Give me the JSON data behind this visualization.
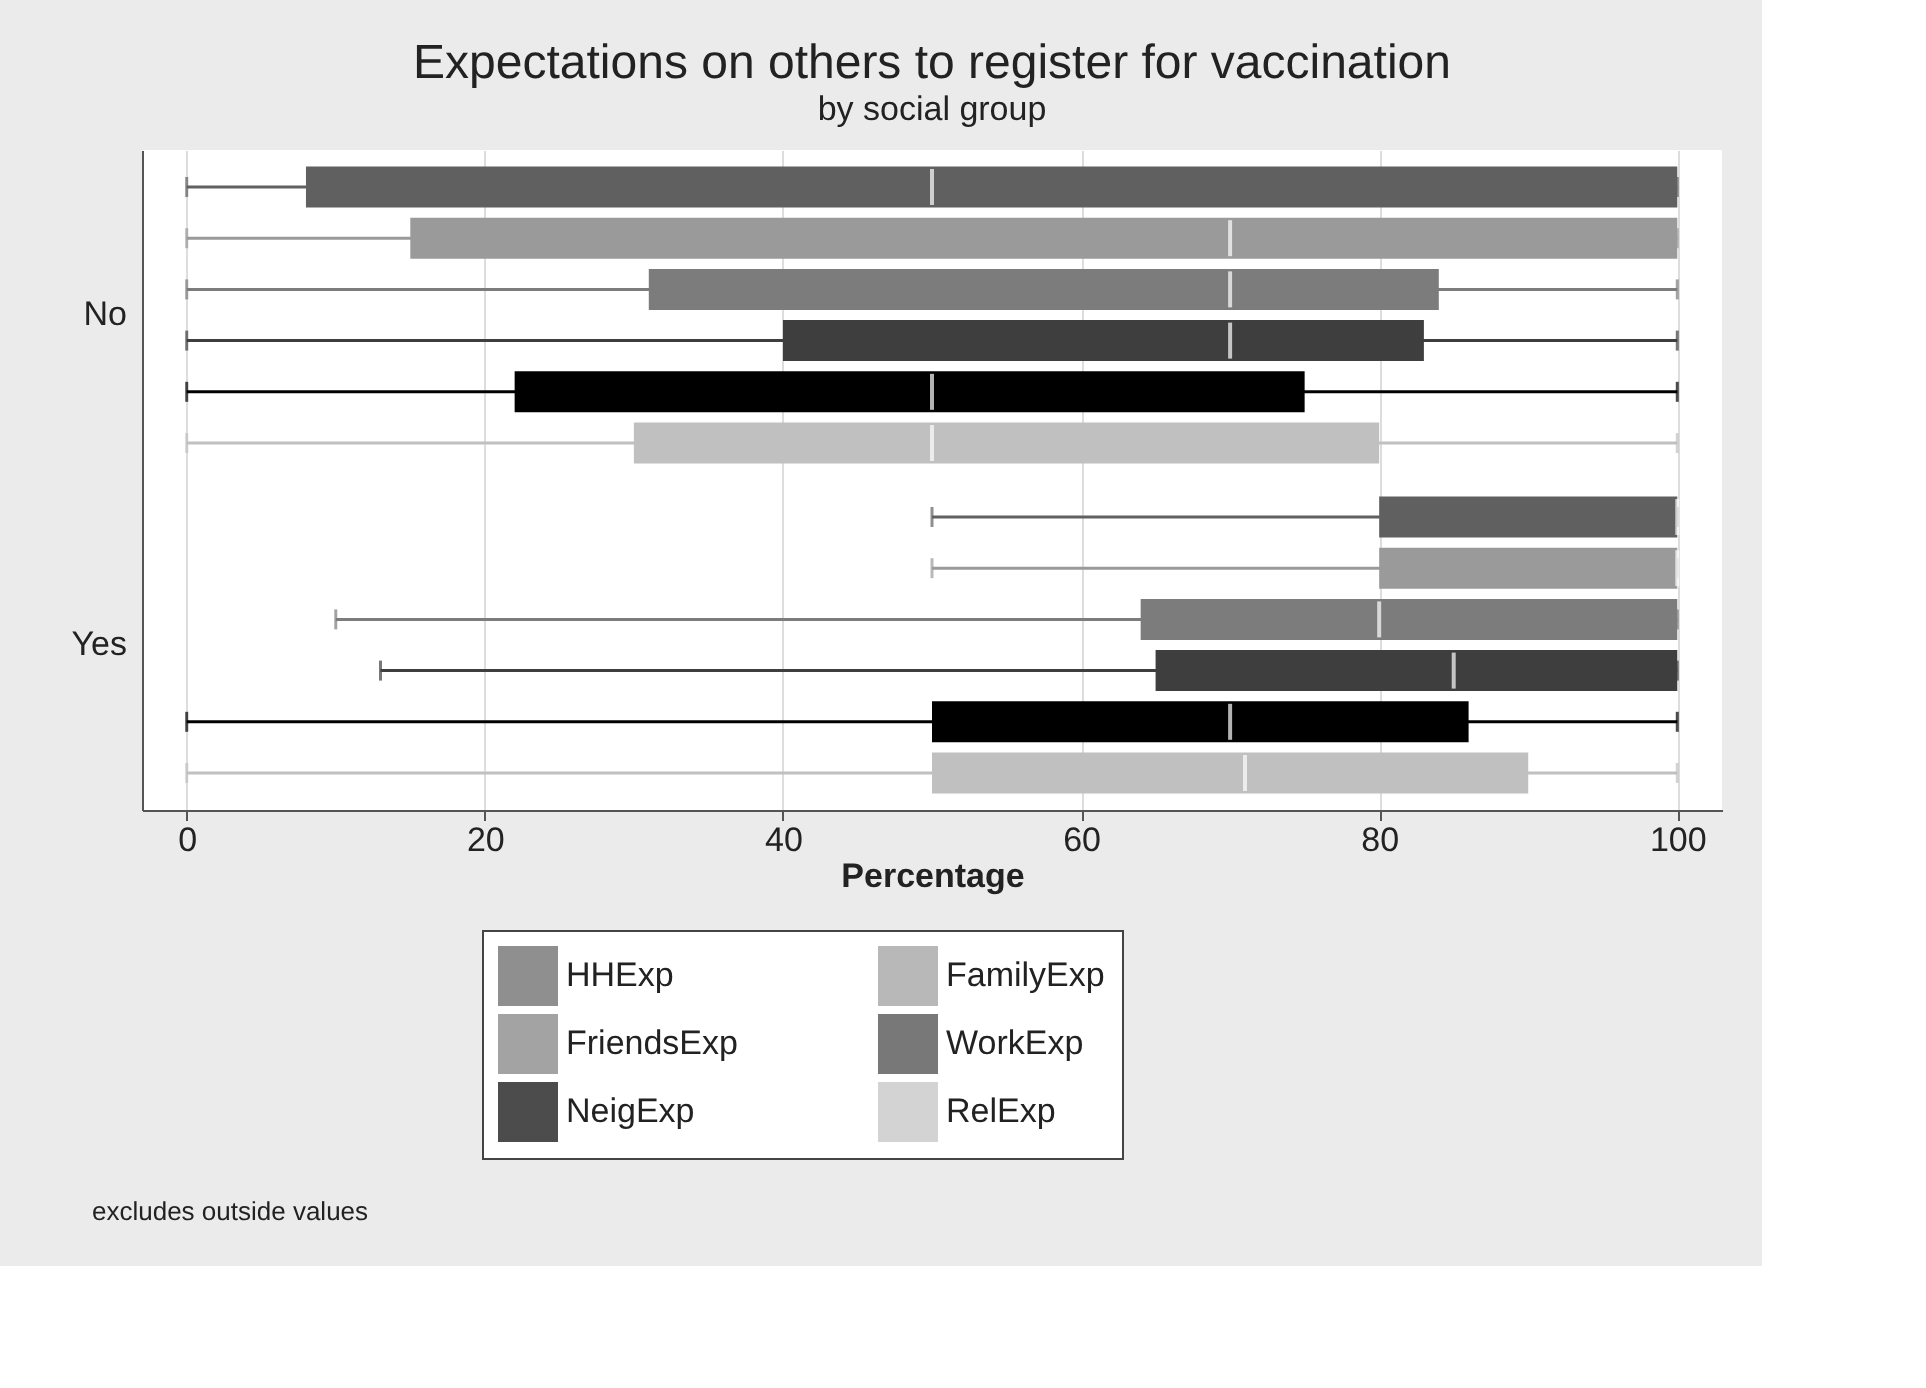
{
  "chart_data": {
    "type": "box",
    "orientation": "horizontal",
    "title": "Expectations on others to register for vaccination",
    "subtitle": "by social group",
    "xlabel": "Percentage",
    "categories": [
      "No",
      "Yes"
    ],
    "series": [
      {
        "name": "HHExp",
        "color": "#606060",
        "boxes": [
          {
            "low": 0,
            "q1": 8,
            "median": 50,
            "q3": 100,
            "high": 100
          },
          {
            "low": 50,
            "q1": 80,
            "median": 100,
            "q3": 100,
            "high": 100
          }
        ]
      },
      {
        "name": "FamilyExp",
        "color": "#9a9a9a",
        "boxes": [
          {
            "low": 0,
            "q1": 15,
            "median": 70,
            "q3": 100,
            "high": 100
          },
          {
            "low": 50,
            "q1": 80,
            "median": 100,
            "q3": 100,
            "high": 100
          }
        ]
      },
      {
        "name": "FriendsExp",
        "color": "#7c7c7c",
        "boxes": [
          {
            "low": 0,
            "q1": 31,
            "median": 70,
            "q3": 84,
            "high": 100
          },
          {
            "low": 10,
            "q1": 64,
            "median": 80,
            "q3": 100,
            "high": 100
          }
        ]
      },
      {
        "name": "WorkExp",
        "color": "#3e3e3e",
        "boxes": [
          {
            "low": 0,
            "q1": 40,
            "median": 70,
            "q3": 83,
            "high": 100
          },
          {
            "low": 13,
            "q1": 65,
            "median": 85,
            "q3": 100,
            "high": 100
          }
        ]
      },
      {
        "name": "NeigExp",
        "color": "#000000",
        "boxes": [
          {
            "low": 0,
            "q1": 22,
            "median": 50,
            "q3": 75,
            "high": 100
          },
          {
            "low": 0,
            "q1": 50,
            "median": 70,
            "q3": 86,
            "high": 100
          }
        ]
      },
      {
        "name": "RelExp",
        "color": "#c0c0c0",
        "boxes": [
          {
            "low": 0,
            "q1": 30,
            "median": 50,
            "q3": 80,
            "high": 100
          },
          {
            "low": 0,
            "q1": 50,
            "median": 71,
            "q3": 90,
            "high": 100
          }
        ]
      }
    ],
    "xlim": [
      -3,
      103
    ],
    "xticks": [
      0,
      20,
      40,
      60,
      80,
      100
    ],
    "grid": "x",
    "legend": "bottom",
    "annotations": [
      "excludes outside values"
    ]
  }
}
